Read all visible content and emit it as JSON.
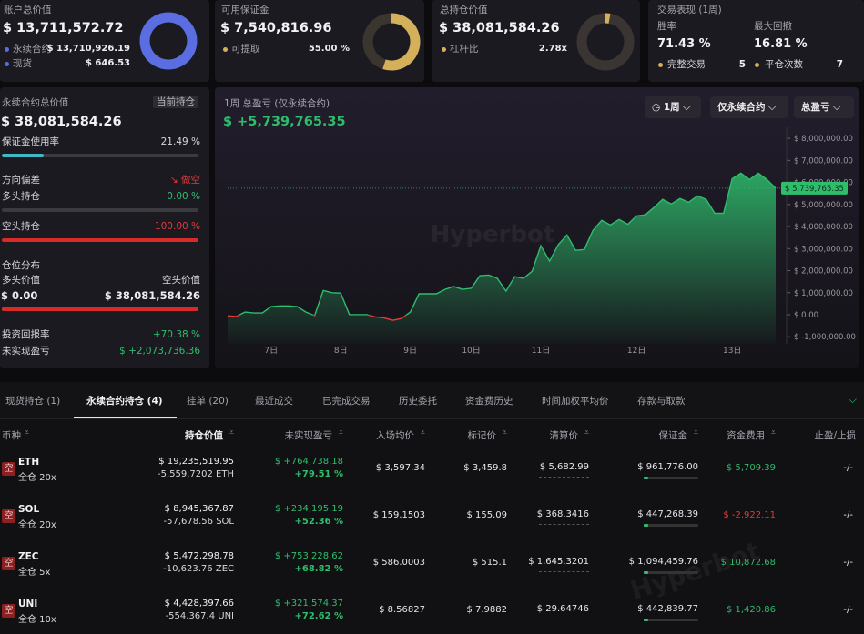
{
  "cards": [
    {
      "title": "账户总价值",
      "value": "$ 13,711,572.72",
      "rows": [
        [
          "永续合约",
          "$ 13,710,926.19"
        ],
        [
          "现货",
          "$ 646.53"
        ]
      ]
    },
    {
      "title": "可用保证金",
      "value": "$ 7,540,816.96",
      "rows": [
        [
          "可提取",
          "55.00 %"
        ]
      ]
    },
    {
      "title": "总持仓价值",
      "value": "$ 38,081,584.26",
      "rows": [
        [
          "杠杆比",
          "2.78x"
        ]
      ]
    },
    {
      "title": "交易表现 (1周)",
      "stats": [
        [
          "胜率",
          "71.43 %"
        ],
        [
          "最大回撤",
          "16.81 %"
        ]
      ],
      "counts": [
        [
          "完整交易",
          "5"
        ],
        [
          "平仓次数",
          "7"
        ]
      ]
    }
  ],
  "perp_panel": {
    "title": "永续合约总价值",
    "tag": "当前持仓",
    "value": "$ 38,081,584.26",
    "margin_usage": [
      "保证金使用率",
      "21.49 %"
    ],
    "direction": [
      "方向偏差",
      "做空"
    ],
    "long": [
      "多头持仓",
      "0.00 %"
    ],
    "short": [
      "空头持仓",
      "100.00 %"
    ],
    "distribution": {
      "title": "仓位分布",
      "long_label": "多头价值",
      "short_label": "空头价值",
      "long_value": "$ 0.00",
      "short_value": "$ 38,081,584.26"
    },
    "roi": [
      "投资回报率",
      "+70.38 %"
    ],
    "unrealized": [
      "未实现盈亏",
      "$ +2,073,736.36"
    ]
  },
  "chart_data": {
    "type": "line",
    "title": "1周 总盈亏 (仅永续合约)",
    "subtitle": "$ +5,739,765.35",
    "controls": [
      "1周",
      "仅永续合约",
      "总盈亏"
    ],
    "watermark": "Hyperbot",
    "categories": [
      null,
      null,
      null,
      null,
      null,
      "7日",
      null,
      null,
      null,
      null,
      null,
      null,
      null,
      "8日",
      null,
      null,
      null,
      null,
      null,
      null,
      null,
      "9日",
      null,
      null,
      null,
      null,
      null,
      null,
      "10日",
      null,
      null,
      null,
      null,
      null,
      null,
      null,
      "11日",
      null,
      null,
      null,
      null,
      null,
      null,
      null,
      null,
      null,
      null,
      "12日",
      null,
      null,
      null,
      null,
      null,
      null,
      null,
      null,
      null,
      null,
      "13日",
      null,
      null,
      null,
      null,
      null
    ],
    "values": [
      -50000,
      -80000,
      120000,
      80000,
      80000,
      370000,
      400000,
      400000,
      370000,
      120000,
      -40000,
      1100000,
      1000000,
      980000,
      0,
      0,
      0,
      -100000,
      -150000,
      -250000,
      -170000,
      120000,
      950000,
      950000,
      950000,
      1150000,
      1280000,
      1150000,
      1200000,
      1770000,
      1800000,
      1650000,
      1070000,
      1730000,
      1650000,
      1970000,
      3130000,
      2430000,
      3170000,
      3620000,
      2920000,
      2960000,
      3830000,
      4280000,
      4070000,
      4320000,
      4100000,
      4480000,
      4530000,
      4860000,
      5230000,
      5020000,
      5270000,
      5100000,
      5390000,
      5230000,
      4600000,
      4600000,
      6170000,
      6420000,
      6130000,
      6420000,
      6130000,
      5739765.35
    ],
    "current_label": "$ 5,739,765.35",
    "color_positive": "#2ebd6b",
    "color_negative": "#e03a3a",
    "ylim": [
      -1300000,
      8500000
    ],
    "yticks": [
      {
        "value": -1000000,
        "label": "$ -1,000,000.00"
      },
      {
        "value": 0,
        "label": "$ 0.00"
      },
      {
        "value": 1000000,
        "label": "$ 1,000,000.00"
      },
      {
        "value": 2000000,
        "label": "$ 2,000,000.00"
      },
      {
        "value": 3000000,
        "label": "$ 3,000,000.00"
      },
      {
        "value": 4000000,
        "label": "$ 4,000,000.00"
      },
      {
        "value": 5000000,
        "label": "$ 5,000,000.00"
      },
      {
        "value": 6000000,
        "label": "$ 6,000,000.00"
      },
      {
        "value": 7000000,
        "label": "$ 7,000,000.00"
      },
      {
        "value": 8000000,
        "label": "$ 8,000,000.00"
      }
    ],
    "grid": false
  },
  "tabs": {
    "items": [
      "现货持仓 (1)",
      "永续合约持仓 (4)",
      "挂单 (20)",
      "最近成交",
      "已完成交易",
      "历史委托",
      "资金费历史",
      "时间加权平均价",
      "存款与取款"
    ],
    "active": 1
  },
  "table": {
    "headers": [
      "币种",
      "持仓价值",
      "未实现盈亏",
      "入场均价",
      "标记价",
      "清算价",
      "保证金",
      "资金费用",
      "止盈/止损"
    ],
    "rows": [
      {
        "side": "空",
        "coin": "ETH",
        "mode": "全仓 20x",
        "value": "$ 19,235,519.95",
        "size": "-5,559.7202 ETH",
        "pnl": "$ +764,738.18",
        "pnl_pct": "+79.51 %",
        "entry": "$ 3,597.34",
        "mark": "$ 3,459.8",
        "liq": "$ 5,682.99",
        "margin": "$ 961,776.00",
        "funding": "$ 5,709.39",
        "tpsl": "-/-"
      },
      {
        "side": "空",
        "coin": "SOL",
        "mode": "全仓 20x",
        "value": "$ 8,945,367.87",
        "size": "-57,678.56 SOL",
        "pnl": "$ +234,195.19",
        "pnl_pct": "+52.36 %",
        "entry": "$ 159.1503",
        "mark": "$ 155.09",
        "liq": "$ 368.3416",
        "margin": "$ 447,268.39",
        "funding": "$ -2,922.11",
        "tpsl": "-/-"
      },
      {
        "side": "空",
        "coin": "ZEC",
        "mode": "全仓 5x",
        "value": "$ 5,472,298.78",
        "size": "-10,623.76 ZEC",
        "pnl": "$ +753,228.62",
        "pnl_pct": "+68.82 %",
        "entry": "$ 586.0003",
        "mark": "$ 515.1",
        "liq": "$ 1,645.3201",
        "margin": "$ 1,094,459.76",
        "funding": "$ 10,872.68",
        "tpsl": "-/-"
      },
      {
        "side": "空",
        "coin": "UNI",
        "mode": "全仓 10x",
        "value": "$ 4,428,397.66",
        "size": "-554,367.4 UNI",
        "pnl": "$ +321,574.37",
        "pnl_pct": "+72.62 %",
        "entry": "$ 8.56827",
        "mark": "$ 7.9882",
        "liq": "$ 29.64746",
        "margin": "$ 442,839.77",
        "funding": "$ 1,420.86",
        "tpsl": "-/-"
      }
    ]
  }
}
